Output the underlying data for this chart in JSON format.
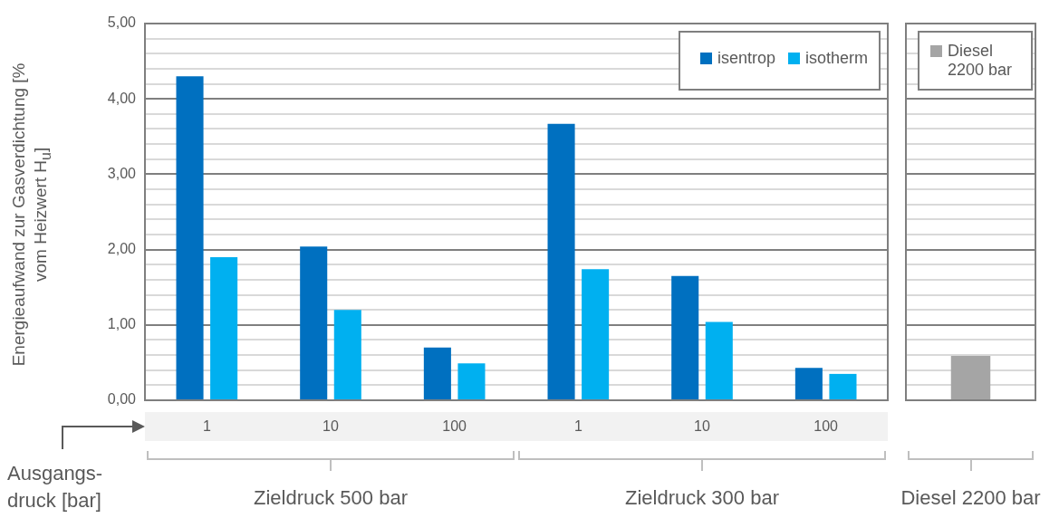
{
  "chart_data": [
    {
      "type": "bar",
      "ylabel": "Energieaufwand zur Gasverdichtung [% vom Heizwert H$_{u}$]",
      "xlabel": "Ausgangs-druck [bar]",
      "categories": [
        "1",
        "10",
        "100",
        "1",
        "10",
        "100"
      ],
      "series": [
        {
          "name": "isentrop",
          "color": "#0070c0",
          "values": [
            4.3,
            2.04,
            0.7,
            3.67,
            1.65,
            0.43
          ]
        },
        {
          "name": "isotherm",
          "color": "#00b0f0",
          "values": [
            1.9,
            1.2,
            0.49,
            1.74,
            1.04,
            0.35
          ]
        }
      ],
      "ylim": [
        0,
        5
      ],
      "yticks": [
        {
          "value": 0,
          "label": "0,00"
        },
        {
          "value": 0.2,
          "label": null
        },
        {
          "value": 0.4,
          "label": null
        },
        {
          "value": 0.6,
          "label": null
        },
        {
          "value": 0.8,
          "label": null
        },
        {
          "value": 1,
          "label": "1,00"
        },
        {
          "value": 1.2,
          "label": null
        },
        {
          "value": 1.4,
          "label": null
        },
        {
          "value": 1.6,
          "label": null
        },
        {
          "value": 1.8,
          "label": null
        },
        {
          "value": 2,
          "label": "2,00"
        },
        {
          "value": 2.2,
          "label": null
        },
        {
          "value": 2.4,
          "label": null
        },
        {
          "value": 2.6,
          "label": null
        },
        {
          "value": 2.8,
          "label": null
        },
        {
          "value": 3,
          "label": "3,00"
        },
        {
          "value": 3.2,
          "label": null
        },
        {
          "value": 3.4,
          "label": null
        },
        {
          "value": 3.6,
          "label": null
        },
        {
          "value": 3.8,
          "label": null
        },
        {
          "value": 4,
          "label": "4,00"
        },
        {
          "value": 4.2,
          "label": null
        },
        {
          "value": 4.4,
          "label": null
        },
        {
          "value": 4.6,
          "label": null
        },
        {
          "value": 4.8,
          "label": null
        },
        {
          "value": 5,
          "label": "5,00"
        }
      ],
      "grid": "y",
      "legend": "top right",
      "annotations": [
        "Zieldruck 500 bar",
        "Zieldruck 300 bar"
      ]
    },
    {
      "type": "bar",
      "xlabel": "Diesel 2200 bar",
      "categories": [
        null
      ],
      "series": [
        {
          "name": "Diesel 2200 bar",
          "color": "#a5a5a5",
          "values": [
            0.59
          ]
        }
      ],
      "ylim": [
        0,
        5
      ],
      "yticks": [
        {
          "value": 0,
          "label": null
        },
        {
          "value": 0.2,
          "label": null
        },
        {
          "value": 0.4,
          "label": null
        },
        {
          "value": 0.6,
          "label": null
        },
        {
          "value": 0.8,
          "label": null
        },
        {
          "value": 1,
          "label": null
        },
        {
          "value": 1.2,
          "label": null
        },
        {
          "value": 1.4,
          "label": null
        },
        {
          "value": 1.6,
          "label": null
        },
        {
          "value": 1.8,
          "label": null
        },
        {
          "value": 2,
          "label": null
        },
        {
          "value": 2.2,
          "label": null
        },
        {
          "value": 2.4,
          "label": null
        },
        {
          "value": 2.6,
          "label": null
        },
        {
          "value": 2.8,
          "label": null
        },
        {
          "value": 3,
          "label": null
        },
        {
          "value": 3.2,
          "label": null
        },
        {
          "value": 3.4,
          "label": null
        },
        {
          "value": 3.6,
          "label": null
        },
        {
          "value": 3.8,
          "label": null
        },
        {
          "value": 4,
          "label": null
        },
        {
          "value": 4.2,
          "label": null
        },
        {
          "value": 4.4,
          "label": null
        },
        {
          "value": 4.6,
          "label": null
        },
        {
          "value": 4.8,
          "label": null
        },
        {
          "value": 5,
          "label": null
        }
      ],
      "grid": "y",
      "legend": "top right",
      "tick_labels": false
    }
  ]
}
